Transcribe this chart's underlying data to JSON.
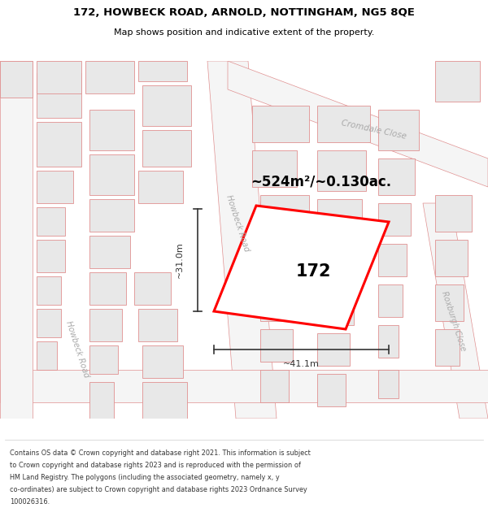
{
  "title_line1": "172, HOWBECK ROAD, ARNOLD, NOTTINGHAM, NG5 8QE",
  "title_line2": "Map shows position and indicative extent of the property.",
  "area_label": "~524m²/~0.130ac.",
  "property_number": "172",
  "dim_width": "~41.1m",
  "dim_height": "~31.0m",
  "bg_color": "#f5f5f5",
  "map_bg": "#ffffff",
  "building_fill": "#e8e8e8",
  "building_edge": "#e09090",
  "road_fill": "#ffffff",
  "road_edge": "#e09090",
  "property_edge": "#ff0000",
  "dim_color": "#333333",
  "street_label_color": "#aaaaaa",
  "footer_lines": [
    "Contains OS data © Crown copyright and database right 2021. This information is subject",
    "to Crown copyright and database rights 2023 and is reproduced with the permission of",
    "HM Land Registry. The polygons (including the associated geometry, namely x, y",
    "co-ordinates) are subject to Crown copyright and database rights 2023 Ordnance Survey",
    "100026316."
  ]
}
